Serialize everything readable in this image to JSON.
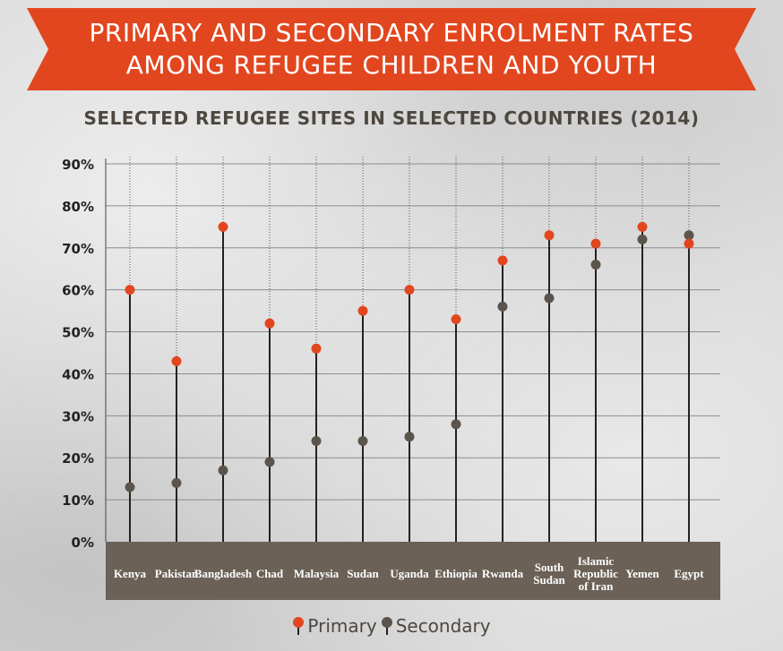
{
  "header": {
    "title_line1": "PRIMARY AND SECONDARY ENROLMENT RATES",
    "title_line2": "AMONG REFUGEE CHILDREN AND YOUTH",
    "subtitle": "SELECTED REFUGEE SITES IN SELECTED COUNTRIES (2014)"
  },
  "colors": {
    "banner": "#e2461f",
    "primary": "#e2461f",
    "secondary": "#5b544c",
    "axis_band": "#6b6157",
    "stem": "#222222"
  },
  "legend": {
    "primary_label": "Primary",
    "secondary_label": "Secondary"
  },
  "chart_data": {
    "type": "scatter",
    "title": "SELECTED REFUGEE SITES IN SELECTED COUNTRIES (2014)",
    "xlabel": "",
    "ylabel": "",
    "ylim": [
      0,
      90
    ],
    "y_ticks": [
      0,
      10,
      20,
      30,
      40,
      50,
      60,
      70,
      80,
      90
    ],
    "y_tick_labels": [
      "0%",
      "10%",
      "20%",
      "30%",
      "40%",
      "50%",
      "60%",
      "70%",
      "80%",
      "90%"
    ],
    "grid": true,
    "legend_position": "bottom-center",
    "categories": [
      [
        "Kenya"
      ],
      [
        "Pakistan"
      ],
      [
        "Bangladesh"
      ],
      [
        "Chad"
      ],
      [
        "Malaysia"
      ],
      [
        "Sudan"
      ],
      [
        "Uganda"
      ],
      [
        "Ethiopia"
      ],
      [
        "Rwanda"
      ],
      [
        "South",
        "Sudan"
      ],
      [
        "Islamic",
        "Republic",
        "of Iran"
      ],
      [
        "Yemen"
      ],
      [
        "Egypt"
      ]
    ],
    "series": [
      {
        "name": "Primary",
        "values": [
          60,
          43,
          75,
          52,
          46,
          55,
          60,
          53,
          67,
          73,
          71,
          75,
          71
        ]
      },
      {
        "name": "Secondary",
        "values": [
          13,
          14,
          17,
          19,
          24,
          24,
          25,
          28,
          56,
          58,
          66,
          72,
          73
        ]
      }
    ]
  }
}
